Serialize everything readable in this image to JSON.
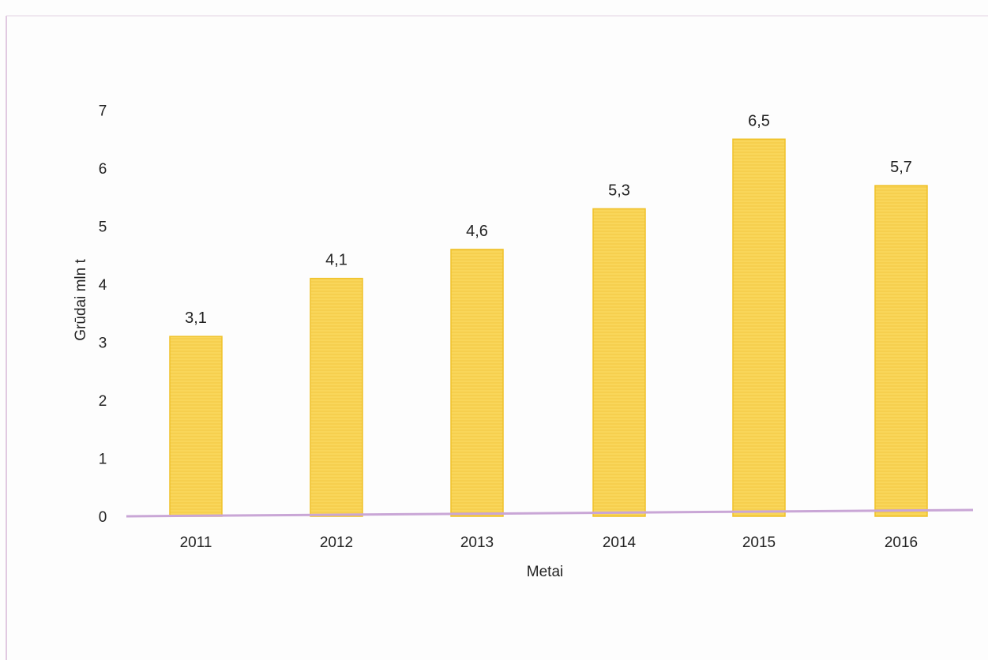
{
  "chart_data": {
    "type": "bar",
    "categories": [
      "2011",
      "2012",
      "2013",
      "2014",
      "2015",
      "2016"
    ],
    "values": [
      3.1,
      4.1,
      4.6,
      5.3,
      6.5,
      5.7
    ],
    "data_labels": [
      "3,1",
      "4,1",
      "4,6",
      "5,3",
      "6,5",
      "5,7"
    ],
    "title": "",
    "xlabel": "Metai",
    "ylabel": "Grūdai mln t",
    "ylim": [
      0,
      7
    ],
    "yticks": [
      "0",
      "1",
      "2",
      "3",
      "4",
      "5",
      "6",
      "7"
    ],
    "grid": false,
    "legend": "none",
    "colors": {
      "bar_fill": "#F9D65A",
      "bar_stroke": "#F0C22A",
      "baseline": "#C9A6D6",
      "frame": "#D8B8D8"
    }
  }
}
